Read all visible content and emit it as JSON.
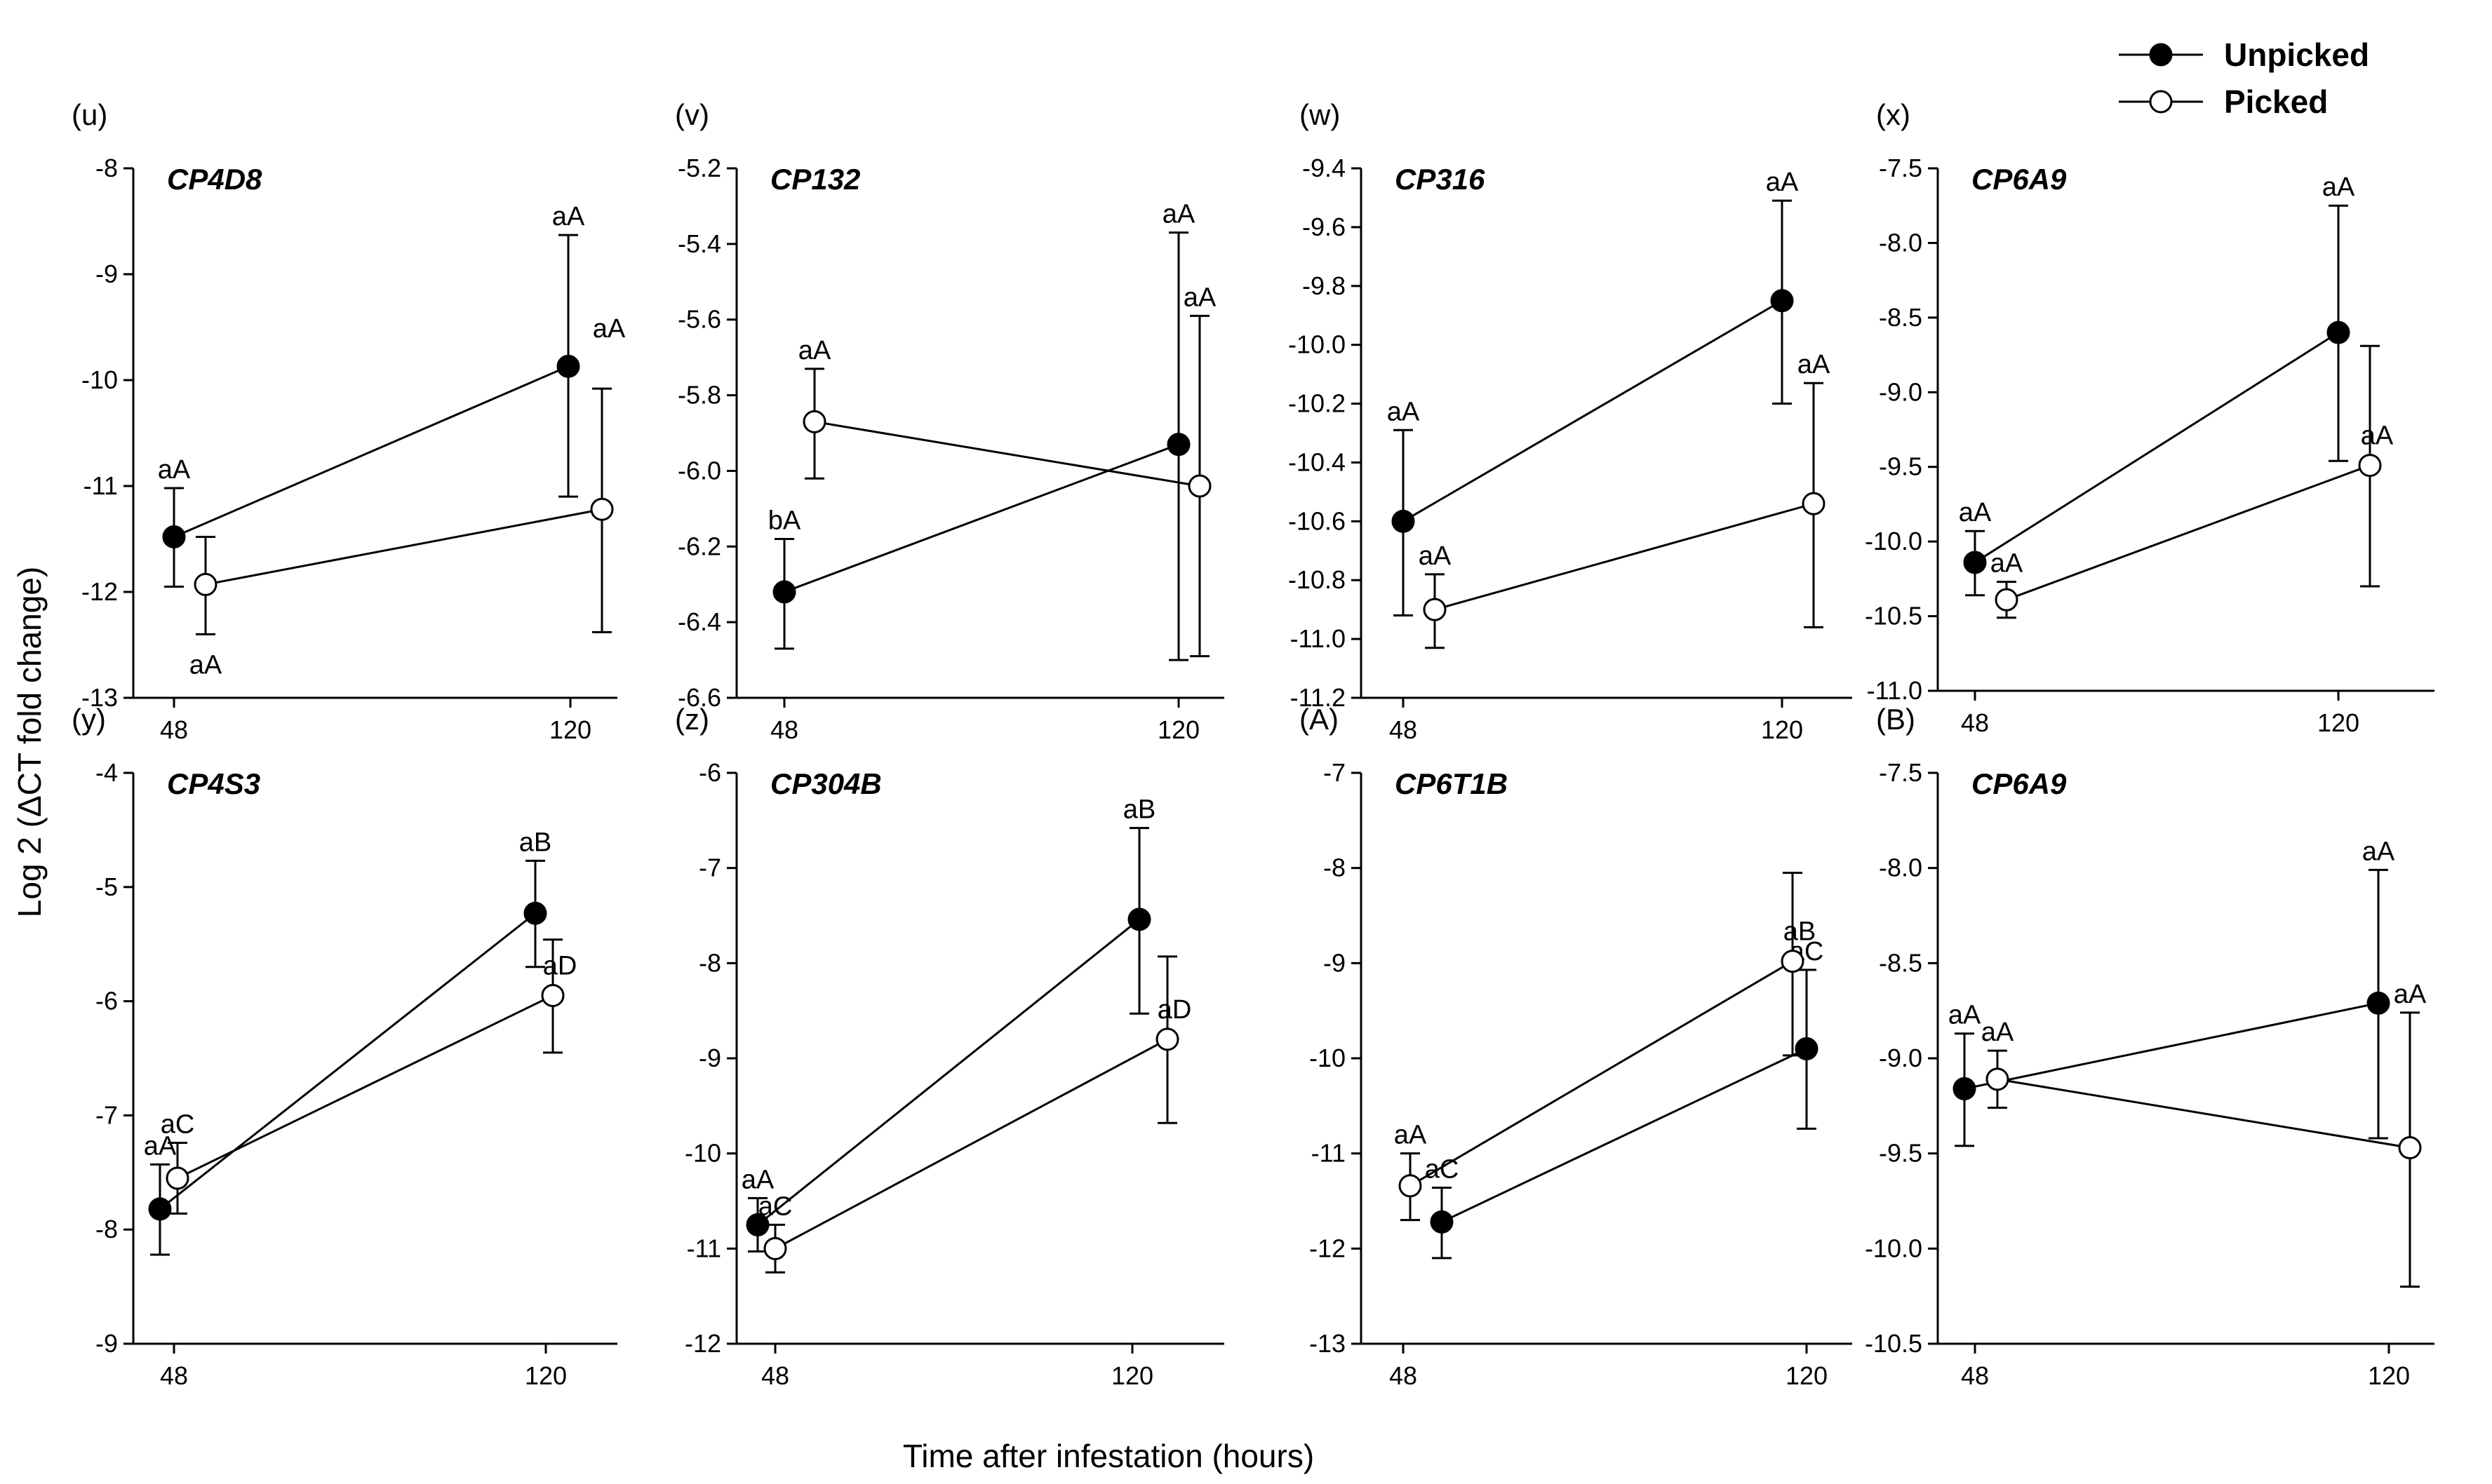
{
  "figure": {
    "ylabel": "Log 2 (ΔCT fold change)",
    "xlabel": "Time after infestation (hours)",
    "legend": [
      {
        "name": "Unpicked",
        "marker": "filled-circle"
      },
      {
        "name": "Picked",
        "marker": "open-circle"
      }
    ],
    "colors": {
      "line": "#000000",
      "picked_fill": "#ffffff",
      "unpicked_fill": "#000000"
    }
  },
  "chart_data": [
    {
      "type": "line",
      "panel": "(u)",
      "title": "CP4D8",
      "x": [
        48,
        120
      ],
      "xticks": [
        "48",
        "120"
      ],
      "ylim": [
        -13,
        -8
      ],
      "yticks": [
        -13,
        -12,
        -11,
        -10,
        -9,
        -8
      ],
      "ytick_labels": [
        "-13",
        "-12",
        "-11",
        "-10",
        "-9",
        "-8"
      ],
      "series": [
        {
          "name": "Unpicked",
          "values": [
            -11.48,
            -9.87
          ],
          "err_low": [
            -11.95,
            -11.1
          ],
          "err_high": [
            -11.02,
            -8.63
          ],
          "labels": [
            "aA",
            "aA"
          ]
        },
        {
          "name": "Picked",
          "values": [
            -11.93,
            -11.22
          ],
          "err_low": [
            -12.4,
            -12.38
          ],
          "err_high": [
            -11.48,
            -10.08
          ],
          "labels": [
            "aA",
            "aA"
          ]
        }
      ]
    },
    {
      "type": "line",
      "panel": "(v)",
      "title": "CP132",
      "x": [
        48,
        120
      ],
      "xticks": [
        "48",
        "120"
      ],
      "ylim": [
        -6.6,
        -5.2
      ],
      "yticks": [
        -6.6,
        -6.4,
        -6.2,
        -6.0,
        -5.8,
        -5.6,
        -5.4,
        -5.2
      ],
      "ytick_labels": [
        "-6.6",
        "-6.4",
        "-6.2",
        "-6.0",
        "-5.8",
        "-5.6",
        "-5.4",
        "-5.2"
      ],
      "series": [
        {
          "name": "Unpicked",
          "values": [
            -6.32,
            -5.93
          ],
          "err_low": [
            -6.47,
            -6.5
          ],
          "err_high": [
            -6.18,
            -5.37
          ],
          "labels": [
            "bA",
            "aA"
          ]
        },
        {
          "name": "Picked",
          "values": [
            -5.87,
            -6.04
          ],
          "err_low": [
            -6.02,
            -6.49
          ],
          "err_high": [
            -5.73,
            -5.59
          ],
          "labels": [
            "aA",
            "aA"
          ]
        }
      ]
    },
    {
      "type": "line",
      "panel": "(w)",
      "title": "CP316",
      "x": [
        48,
        120
      ],
      "xticks": [
        "48",
        "120"
      ],
      "ylim": [
        -11.2,
        -9.4
      ],
      "yticks": [
        -11.2,
        -11.0,
        -10.8,
        -10.6,
        -10.4,
        -10.2,
        -10.0,
        -9.8,
        -9.6,
        -9.4
      ],
      "ytick_labels": [
        "-11.2",
        "-11.0",
        "-10.8",
        "-10.6",
        "-10.4",
        "-10.2",
        "-10.0",
        "-9.8",
        "-9.6",
        "-9.4"
      ],
      "series": [
        {
          "name": "Unpicked",
          "values": [
            -10.6,
            -9.85
          ],
          "err_low": [
            -10.92,
            -10.2
          ],
          "err_high": [
            -10.29,
            -9.51
          ],
          "labels": [
            "aA",
            "aA"
          ]
        },
        {
          "name": "Picked",
          "values": [
            -10.9,
            -10.54
          ],
          "err_low": [
            -11.03,
            -10.96
          ],
          "err_high": [
            -10.78,
            -10.13
          ],
          "labels": [
            "aA",
            "aA"
          ]
        }
      ]
    },
    {
      "type": "line",
      "panel": "(x)",
      "title": "CP6A9",
      "x": [
        48,
        120
      ],
      "xticks": [
        "48",
        "120"
      ],
      "ylim": [
        -11.0,
        -7.5
      ],
      "yticks": [
        -11.0,
        -10.5,
        -10.0,
        -9.5,
        -9.0,
        -8.5,
        -8.0,
        -7.5
      ],
      "ytick_labels": [
        "-11.0",
        "-10.5",
        "-10.0",
        "-9.5",
        "-9.0",
        "-8.5",
        "-8.0",
        "-7.5"
      ],
      "series": [
        {
          "name": "Unpicked",
          "values": [
            -10.14,
            -8.6
          ],
          "err_low": [
            -10.36,
            -9.46
          ],
          "err_high": [
            -9.93,
            -7.75
          ],
          "labels": [
            "aA",
            "aA"
          ]
        },
        {
          "name": "Picked",
          "values": [
            -10.39,
            -9.49
          ],
          "err_low": [
            -10.51,
            -10.3
          ],
          "err_high": [
            -10.27,
            -8.69
          ],
          "labels": [
            "aA",
            "aA"
          ]
        }
      ]
    },
    {
      "type": "line",
      "panel": "(y)",
      "title": "CP4S3",
      "x": [
        48,
        120
      ],
      "xticks": [
        "48",
        "120"
      ],
      "ylim": [
        -9,
        -4
      ],
      "yticks": [
        -9,
        -8,
        -7,
        -6,
        -5,
        -4
      ],
      "ytick_labels": [
        "-9",
        "-8",
        "-7",
        "-6",
        "-5",
        "-4"
      ],
      "series": [
        {
          "name": "Unpicked",
          "values": [
            -7.82,
            -5.23
          ],
          "err_low": [
            -8.22,
            -5.7
          ],
          "err_high": [
            -7.43,
            -4.77
          ],
          "labels": [
            "aA",
            "aB"
          ]
        },
        {
          "name": "Picked",
          "values": [
            -7.55,
            -5.95
          ],
          "err_low": [
            -7.86,
            -6.45
          ],
          "err_high": [
            -7.24,
            -5.46
          ],
          "labels": [
            "aC",
            "aD"
          ]
        }
      ]
    },
    {
      "type": "line",
      "panel": "(z)",
      "title": "CP304B",
      "x": [
        48,
        120
      ],
      "xticks": [
        "48",
        "120"
      ],
      "ylim": [
        -12,
        -6
      ],
      "yticks": [
        -12,
        -11,
        -10,
        -9,
        -8,
        -7,
        -6
      ],
      "ytick_labels": [
        "-12",
        "-11",
        "-10",
        "-9",
        "-8",
        "-7",
        "-6"
      ],
      "series": [
        {
          "name": "Unpicked",
          "values": [
            -10.75,
            -7.54
          ],
          "err_low": [
            -11.03,
            -8.53
          ],
          "err_high": [
            -10.47,
            -6.58
          ],
          "labels": [
            "aA",
            "aB"
          ]
        },
        {
          "name": "Picked",
          "values": [
            -11.0,
            -8.8
          ],
          "err_low": [
            -11.25,
            -9.68
          ],
          "err_high": [
            -10.75,
            -7.93
          ],
          "labels": [
            "aC",
            "aD"
          ]
        }
      ]
    },
    {
      "type": "line",
      "panel": "(A)",
      "title": "CP6T1B",
      "x": [
        48,
        120
      ],
      "xticks": [
        "48",
        "120"
      ],
      "ylim": [
        -13,
        -7
      ],
      "yticks": [
        -13,
        -12,
        -11,
        -10,
        -9,
        -8,
        -7
      ],
      "ytick_labels": [
        "-13",
        "-12",
        "-11",
        "-10",
        "-9",
        "-8",
        "-7"
      ],
      "series": [
        {
          "name": "Unpicked",
          "values": [
            -11.72,
            -9.9
          ],
          "err_low": [
            -12.1,
            -10.74
          ],
          "err_high": [
            -11.36,
            -9.07
          ],
          "labels": [
            "aC",
            "aC"
          ]
        },
        {
          "name": "Picked",
          "values": [
            -11.34,
            -8.98
          ],
          "err_low": [
            -11.7,
            -9.97
          ],
          "err_high": [
            -11.0,
            -8.05
          ],
          "labels": [
            "aA",
            "aB"
          ]
        }
      ]
    },
    {
      "type": "line",
      "panel": "(B)",
      "title": "CP6A9",
      "x": [
        48,
        120
      ],
      "xticks": [
        "48",
        "120"
      ],
      "ylim": [
        -10.5,
        -7.5
      ],
      "yticks": [
        -10.5,
        -10.0,
        -9.5,
        -9.0,
        -8.5,
        -8.0,
        -7.5
      ],
      "ytick_labels": [
        "-10.5",
        "-10.0",
        "-9.5",
        "-9.0",
        "-8.5",
        "-8.0",
        "-7.5"
      ],
      "series": [
        {
          "name": "Unpicked",
          "values": [
            -9.16,
            -8.71
          ],
          "err_low": [
            -9.46,
            -9.42
          ],
          "err_high": [
            -8.87,
            -8.01
          ],
          "labels": [
            "aA",
            "aA"
          ]
        },
        {
          "name": "Picked",
          "values": [
            -9.11,
            -9.47
          ],
          "err_low": [
            -9.26,
            -10.2
          ],
          "err_high": [
            -8.96,
            -8.76
          ],
          "labels": [
            "aA",
            "aA"
          ]
        }
      ]
    }
  ]
}
